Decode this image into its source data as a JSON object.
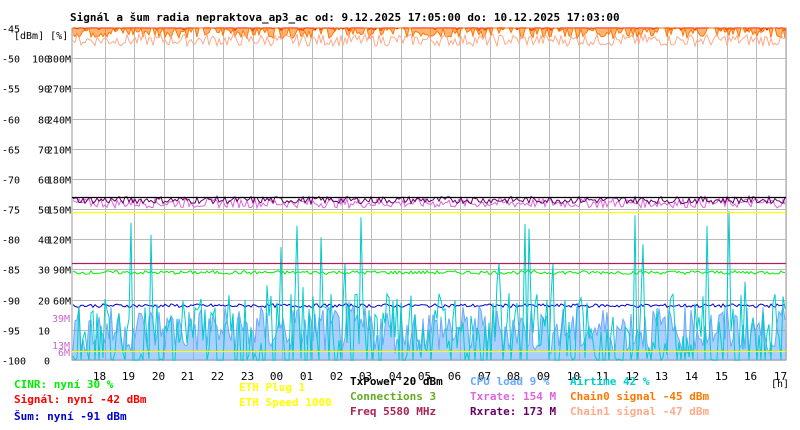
{
  "chart_data": {
    "type": "line",
    "title": "Signál a šum radia nepraktova_ap3_ac od: 9.12.2025 17:05:00 do: 10.12.2025 17:03:00",
    "units_label": "[dBm] [%]",
    "xlabel": "[h]",
    "x_ticks": [
      "18",
      "19",
      "20",
      "21",
      "22",
      "23",
      "00",
      "01",
      "02",
      "03",
      "04",
      "05",
      "06",
      "07",
      "08",
      "09",
      "10",
      "11",
      "12",
      "13",
      "14",
      "15",
      "16",
      "17"
    ],
    "y_axis_dbm": {
      "ticks": [
        -45,
        -50,
        -55,
        -60,
        -65,
        -70,
        -75,
        -80,
        -85,
        -90,
        -95,
        -100
      ],
      "ylim": [
        -100,
        -45
      ]
    },
    "y_axis_percent": {
      "ticks": [
        100,
        90,
        80,
        70,
        60,
        50,
        40,
        30,
        20,
        10,
        0
      ]
    },
    "y_axis_rate": {
      "ticks": [
        "300M",
        "270M",
        "240M",
        "210M",
        "180M",
        "150M",
        "120M",
        "90M",
        "60M"
      ]
    },
    "y_axis_rate_small": [
      {
        "label": "39M",
        "color": "#cc66cc"
      },
      {
        "label": "13M",
        "color": "#cc66cc"
      },
      {
        "label": "6M",
        "color": "#cc66cc"
      }
    ],
    "legend": [
      {
        "text": "CINR: nyní 30 %",
        "color": "#00ee00"
      },
      {
        "text": "Signál: nyní -42 dBm",
        "color": "#ff0000"
      },
      {
        "text": "Šum: nyní -91 dBm",
        "color": "#0000cc"
      },
      {
        "text": "ETH Plug 1",
        "color": "#ffff00"
      },
      {
        "text": "ETH Speed 1000",
        "color": "#ffff00"
      },
      {
        "text": "TxPower 20 dBm",
        "color": "#000000"
      },
      {
        "text": "Connections 3",
        "color": "#66aa22"
      },
      {
        "text": "Freq 5580 MHz",
        "color": "#aa2255"
      },
      {
        "text": "CPU load 9 %",
        "color": "#66aaff"
      },
      {
        "text": "Txrate: 154 M",
        "color": "#dd66dd"
      },
      {
        "text": "Rxrate: 173 M",
        "color": "#660066"
      },
      {
        "text": "Airtime 42 %",
        "color": "#00cccc"
      },
      {
        "text": "Chain0 signal -45 dBm",
        "color": "#ff7700"
      },
      {
        "text": "Chain1 signal -47 dBm",
        "color": "#ffaa88"
      }
    ],
    "series": [
      {
        "name": "Signál",
        "baseline": -44,
        "noise": 1.5,
        "color": "#ff0000",
        "fill": true
      },
      {
        "name": "Chain0 signal",
        "baseline": -45.5,
        "noise": 1.2,
        "color": "#ff7700",
        "fill": true
      },
      {
        "name": "Chain1 signal",
        "baseline": -47,
        "noise": 1.0,
        "color": "#ffaa88"
      },
      {
        "name": "Txrate",
        "baseline": -74,
        "noise": 0.8,
        "color": "#dd66dd"
      },
      {
        "name": "Rxrate",
        "baseline": -73.5,
        "noise": 0.6,
        "color": "#660066"
      },
      {
        "name": "Šum",
        "baseline": -91,
        "noise": 0.3,
        "color": "#0000cc"
      },
      {
        "name": "CINR",
        "baseline": -85.5,
        "noise": 0.3,
        "color": "#00ee00"
      },
      {
        "name": "CPU load",
        "baseline": -95,
        "noise": 4,
        "color": "#66aaff",
        "fill": true
      },
      {
        "name": "Airtime",
        "baseline": -97,
        "noise": 8,
        "color": "#00cccc",
        "spiky": true
      }
    ],
    "reference_lines": [
      {
        "name": "TxPower",
        "value": -73,
        "color": "#000000"
      },
      {
        "name": "ETH Speed",
        "value": -75.5,
        "color": "#ffff00"
      },
      {
        "name": "Freq",
        "value": -84,
        "color": "#aa2255"
      },
      {
        "name": "ETH Plug",
        "value": -98.5,
        "color": "#ffff00"
      }
    ],
    "grid": true
  }
}
